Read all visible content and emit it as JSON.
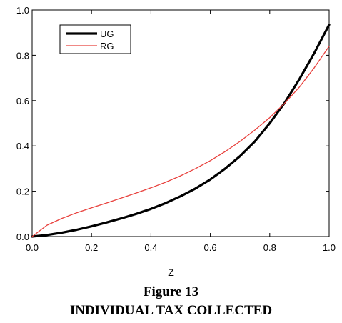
{
  "chart_data": {
    "type": "line",
    "xlabel": "Z",
    "ylabel": "",
    "xlim": [
      0,
      1
    ],
    "ylim": [
      0,
      1
    ],
    "xticks": [
      "0.0",
      "0.2",
      "0.4",
      "0.6",
      "0.8",
      "1.0"
    ],
    "yticks": [
      "0.0",
      "0.2",
      "0.4",
      "0.6",
      "0.8",
      "1.0"
    ],
    "grid": false,
    "legend_position": "top-left",
    "series": [
      {
        "name": "UG",
        "color": "#000000",
        "x": [
          0.0,
          0.05,
          0.1,
          0.15,
          0.2,
          0.25,
          0.3,
          0.35,
          0.4,
          0.45,
          0.5,
          0.55,
          0.6,
          0.65,
          0.7,
          0.75,
          0.8,
          0.85,
          0.9,
          0.95,
          1.0
        ],
        "y": [
          0.0,
          0.007,
          0.017,
          0.03,
          0.045,
          0.062,
          0.08,
          0.1,
          0.122,
          0.148,
          0.178,
          0.212,
          0.252,
          0.3,
          0.355,
          0.42,
          0.5,
          0.59,
          0.695,
          0.81,
          0.935
        ]
      },
      {
        "name": "RG",
        "color": "#e8403c",
        "x": [
          0.0,
          0.05,
          0.1,
          0.15,
          0.2,
          0.25,
          0.3,
          0.35,
          0.4,
          0.45,
          0.5,
          0.55,
          0.6,
          0.65,
          0.7,
          0.75,
          0.8,
          0.85,
          0.9,
          0.95,
          1.0
        ],
        "y": [
          0.0,
          0.05,
          0.08,
          0.105,
          0.127,
          0.148,
          0.17,
          0.192,
          0.215,
          0.24,
          0.268,
          0.3,
          0.335,
          0.375,
          0.42,
          0.47,
          0.525,
          0.588,
          0.66,
          0.745,
          0.84
        ]
      }
    ]
  },
  "caption": {
    "line1": "Figure 13",
    "line2": "INDIVIDUAL TAX COLLECTED"
  }
}
